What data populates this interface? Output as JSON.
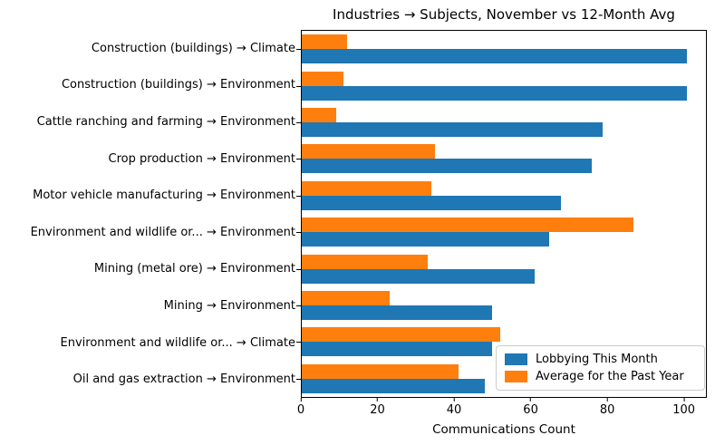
{
  "chart_data": {
    "type": "bar",
    "orientation": "horizontal",
    "title": "Industries → Subjects, November vs 12-Month Avg",
    "xlabel": "Communications Count",
    "ylabel": "",
    "xlim": [
      0,
      106
    ],
    "xticks": [
      0,
      20,
      40,
      60,
      80,
      100
    ],
    "grid": false,
    "legend_position": "lower-right",
    "categories": [
      "Construction (buildings) → Climate",
      "Construction (buildings) → Environment",
      "Cattle ranching and farming → Environment",
      "Crop production → Environment",
      "Motor vehicle manufacturing → Environment",
      "Environment and wildlife or... → Environment",
      "Mining (metal ore) → Environment",
      "Mining → Environment",
      "Environment and wildlife or... → Climate",
      "Oil and gas extraction → Environment"
    ],
    "series": [
      {
        "name": "Lobbying This Month",
        "color": "#1f77b4",
        "values": [
          101,
          101,
          79,
          76,
          68,
          65,
          61,
          50,
          50,
          48
        ]
      },
      {
        "name": "Average for the Past Year",
        "color": "#ff7f0e",
        "values": [
          12,
          11,
          9,
          35,
          34,
          87,
          33,
          23,
          52,
          41
        ]
      }
    ]
  },
  "colors": {
    "background": "#ffffff",
    "axes_frame": "#000000",
    "legend_border": "#cccccc",
    "series_blue": "#1f77b4",
    "series_orange": "#ff7f0e"
  }
}
